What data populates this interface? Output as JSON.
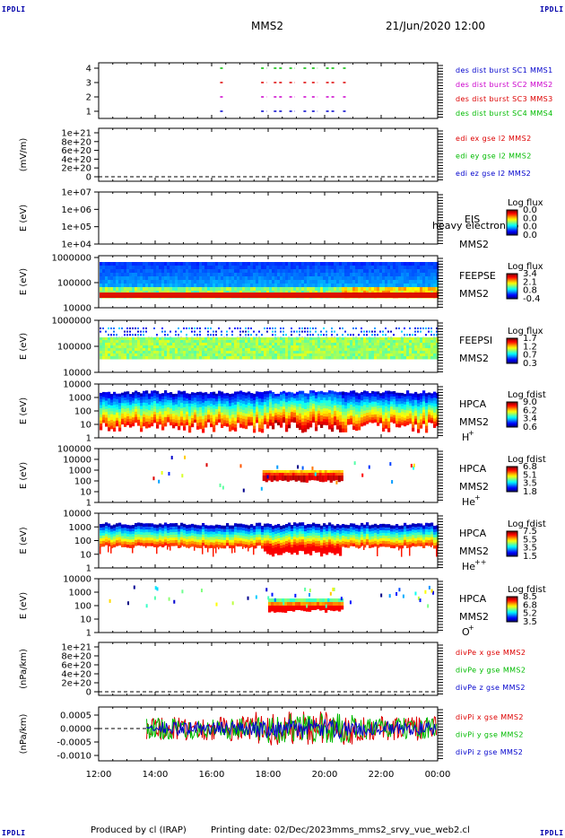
{
  "header": {
    "corner_label": "IPDLI",
    "spacecraft": "MMS2",
    "date_time": "21/Jun/2020 12:00"
  },
  "footer": {
    "produced_by": "Produced by cl (IRAP)",
    "printing_date": "Printing date: 02/Dec/2023",
    "file_name": "mms_mms2_srvy_vue_web2.cl"
  },
  "time_axis": {
    "ticks": [
      "12:00",
      "14:00",
      "16:00",
      "18:00",
      "20:00",
      "22:00",
      "00:00"
    ],
    "start_hour": 12,
    "end_hour": 24
  },
  "colors": {
    "red": "#dd0000",
    "green": "#00bb00",
    "blue": "#0000cc",
    "magenta": "#cc00cc",
    "grey_dash": "#000000"
  },
  "chart_data": [
    {
      "type": "line",
      "panel": "burst-intervals",
      "ylabel": "",
      "yticks": [
        "4",
        "3",
        "2",
        "1"
      ],
      "ylim": [
        0.5,
        4.5
      ],
      "legend": [
        {
          "label": "des dist burst SC1 MMS1",
          "color": "#0000cc"
        },
        {
          "label": "des dist burst SC2 MMS2",
          "color": "#cc00cc"
        },
        {
          "label": "des dist burst SC3 MMS3",
          "color": "#dd0000"
        },
        {
          "label": "des dist burst SC4 MMS4",
          "color": "#00bb00"
        }
      ],
      "burst_intervals_hours": [
        [
          16.3,
          16.45
        ],
        [
          17.75,
          17.95
        ],
        [
          18.2,
          18.5
        ],
        [
          18.75,
          18.95
        ],
        [
          19.25,
          19.4
        ],
        [
          19.55,
          19.75
        ],
        [
          20.05,
          20.35
        ],
        [
          20.65,
          20.8
        ]
      ]
    },
    {
      "type": "line",
      "panel": "edi-electric-field",
      "ylabel": "(mV/m)",
      "yticks": [
        "1e+21",
        "8e+20",
        "6e+20",
        "4e+20",
        "2e+20",
        "0"
      ],
      "ylim": [
        0,
        1e+21
      ],
      "legend": [
        {
          "label": "edi ex gse l2 MMS2",
          "color": "#dd0000"
        },
        {
          "label": "edi ey gse l2 MMS2",
          "color": "#00bb00"
        },
        {
          "label": "edi ez gse l2 MMS2",
          "color": "#0000cc"
        }
      ],
      "series": [
        {
          "name": "edi ex gse l2 MMS2",
          "values": [
            0,
            0
          ]
        },
        {
          "name": "edi ey gse l2 MMS2",
          "values": [
            0,
            0
          ]
        },
        {
          "name": "edi ez gse l2 MMS2",
          "values": [
            0,
            0
          ]
        }
      ]
    },
    {
      "type": "heatmap",
      "panel": "eis",
      "ylabel": "E (eV)",
      "yticks": [
        "1e+07",
        "1e+06",
        "1e+05",
        "1e+04"
      ],
      "label_lines": [
        "EIS",
        "MMS2"
      ],
      "overlay_text": "heavy electron to",
      "colorbar": {
        "title": "Log flux",
        "ticks": [
          "0.0",
          "0.0",
          "0.0",
          "0.0"
        ]
      },
      "data_present": false
    },
    {
      "type": "heatmap",
      "panel": "feeps-electrons",
      "ylabel": "E (eV)",
      "yticks": [
        "1000000",
        "100000",
        "10000"
      ],
      "label_lines": [
        "FEEPSE",
        "MMS2"
      ],
      "colorbar": {
        "title": "Log flux",
        "ticks": [
          "3.4",
          "2.1",
          "0.8",
          "-0.4"
        ]
      },
      "energy_range_eV": [
        30000,
        600000
      ],
      "enhancement_hours": [
        [
          20.6,
          24.0
        ]
      ]
    },
    {
      "type": "heatmap",
      "panel": "feeps-ions",
      "ylabel": "E (eV)",
      "yticks": [
        "1000000",
        "100000",
        "10000"
      ],
      "label_lines": [
        "FEEPSI",
        "MMS2"
      ],
      "colorbar": {
        "title": "Log flux",
        "ticks": [
          "1.7",
          "1.2",
          "0.7",
          "0.3"
        ]
      },
      "energy_range_eV": [
        50000,
        600000
      ]
    },
    {
      "type": "heatmap",
      "panel": "hpca-h",
      "ylabel": "E (eV)",
      "yticks": [
        "10000",
        "1000",
        "100",
        "10",
        "1"
      ],
      "label_lines": [
        "HPCA",
        "MMS2"
      ],
      "species": "H",
      "species_sup": "+",
      "colorbar": {
        "title": "Log fdist",
        "ticks": [
          "9.0",
          "6.2",
          "3.4",
          "0.6"
        ]
      },
      "energy_range_eV": [
        5,
        20000
      ]
    },
    {
      "type": "heatmap",
      "panel": "hpca-he-plus",
      "ylabel": "E (eV)",
      "yticks": [
        "100000",
        "10000",
        "1000",
        "100",
        "10",
        "1"
      ],
      "label_lines": [
        "HPCA",
        "MMS2"
      ],
      "species": "He",
      "species_sup": "+",
      "colorbar": {
        "title": "Log fdist",
        "ticks": [
          "6.8",
          "5.1",
          "3.5",
          "1.8"
        ]
      },
      "main_interval_hours": [
        17.8,
        20.6
      ]
    },
    {
      "type": "heatmap",
      "panel": "hpca-he-plusplus",
      "ylabel": "E (eV)",
      "yticks": [
        "10000",
        "1000",
        "100",
        "10",
        "1"
      ],
      "label_lines": [
        "HPCA",
        "MMS2"
      ],
      "species": "He",
      "species_sup": "++",
      "colorbar": {
        "title": "Log fdist",
        "ticks": [
          "7.5",
          "5.5",
          "3.5",
          "1.5"
        ]
      },
      "energy_range_eV": [
        50,
        5000
      ]
    },
    {
      "type": "heatmap",
      "panel": "hpca-o",
      "ylabel": "E (eV)",
      "yticks": [
        "10000",
        "1000",
        "100",
        "10",
        "1"
      ],
      "label_lines": [
        "HPCA",
        "MMS2"
      ],
      "species": "O",
      "species_sup": "+",
      "colorbar": {
        "title": "Log fdist",
        "ticks": [
          "8.5",
          "6.8",
          "5.2",
          "3.5"
        ]
      },
      "main_interval_hours": [
        18.0,
        20.6
      ]
    },
    {
      "type": "line",
      "panel": "div-pe",
      "ylabel": "(nPa/km)",
      "yticks": [
        "1e+21",
        "8e+20",
        "6e+20",
        "4e+20",
        "2e+20",
        "0"
      ],
      "ylim": [
        0,
        1e+21
      ],
      "legend": [
        {
          "label": "divPe x gse MMS2",
          "color": "#dd0000"
        },
        {
          "label": "divPe y gse MMS2",
          "color": "#00bb00"
        },
        {
          "label": "divPe z gse MMS2",
          "color": "#0000cc"
        }
      ]
    },
    {
      "type": "line",
      "panel": "div-pi",
      "ylabel": "(nPa/km)",
      "yticks": [
        "0.0005",
        "0.0000",
        "-0.0005",
        "-0.0010"
      ],
      "ylim": [
        -0.0012,
        0.0008
      ],
      "legend": [
        {
          "label": "divPi x gse MMS2",
          "color": "#dd0000"
        },
        {
          "label": "divPi y gse MMS2",
          "color": "#00bb00"
        },
        {
          "label": "divPi z gse MMS2",
          "color": "#0000cc"
        }
      ],
      "data_start_hour": 13.7
    }
  ]
}
